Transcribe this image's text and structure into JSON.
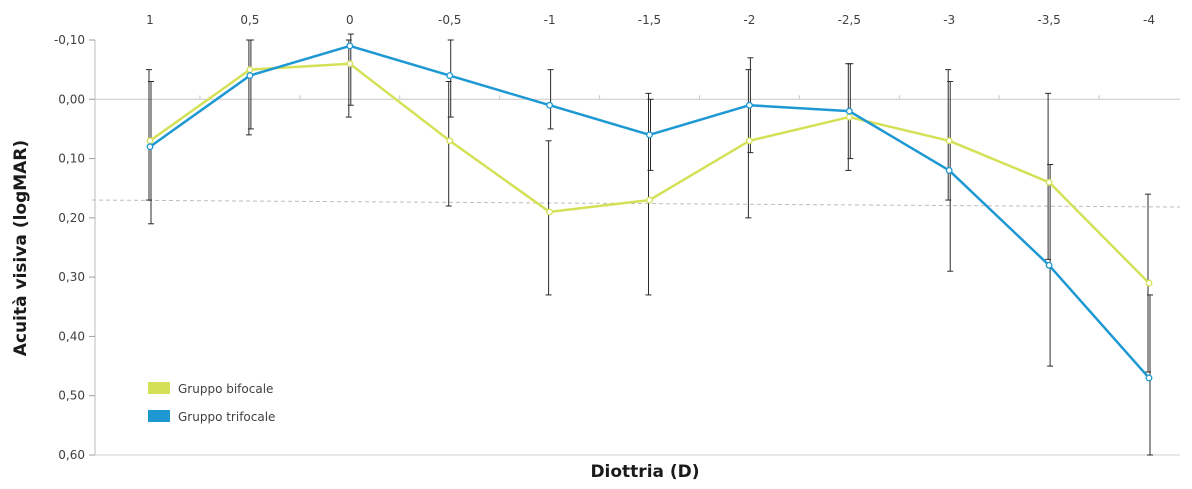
{
  "chart_data": {
    "type": "line",
    "title": "",
    "xlabel": "Diottria (D)",
    "ylabel": "Acuità visiva (logMAR)",
    "categories": [
      "1",
      "0,5",
      "0",
      "-0,5",
      "-1",
      "-1,5",
      "-2",
      "-2,5",
      "-3",
      "-3,5",
      "-4"
    ],
    "y_ticks": [
      "-0,10",
      "0,00",
      "0,10",
      "0,20",
      "0,30",
      "0,40",
      "0,50",
      "0,60"
    ],
    "ylim": [
      -0.1,
      0.6
    ],
    "y_inverted": true,
    "x_axis_position": "top",
    "grid": false,
    "reference_line": 0.175,
    "legend_position": "bottom-left",
    "series": [
      {
        "name": "Gruppo bifocale",
        "color": "#d4e157",
        "values": [
          0.07,
          -0.05,
          -0.06,
          0.07,
          0.19,
          0.17,
          0.07,
          0.03,
          0.07,
          0.14,
          0.31
        ],
        "error_low": [
          -0.05,
          -0.1,
          -0.1,
          -0.03,
          0.07,
          -0.01,
          -0.05,
          -0.06,
          -0.05,
          -0.01,
          0.16
        ],
        "error_high": [
          0.17,
          0.06,
          0.03,
          0.18,
          0.33,
          0.33,
          0.2,
          0.12,
          0.17,
          0.27,
          0.46
        ]
      },
      {
        "name": "Gruppo trifocale",
        "color": "#1d98d3",
        "values": [
          0.08,
          -0.04,
          -0.09,
          -0.04,
          0.01,
          0.06,
          0.01,
          0.02,
          0.12,
          0.28,
          0.47
        ],
        "error_low": [
          -0.03,
          -0.1,
          -0.11,
          -0.1,
          -0.05,
          0.0,
          -0.07,
          -0.06,
          -0.03,
          0.11,
          0.33
        ],
        "error_high": [
          0.21,
          0.05,
          0.01,
          0.03,
          0.05,
          0.12,
          0.09,
          0.1,
          0.29,
          0.45,
          0.6
        ]
      }
    ]
  }
}
